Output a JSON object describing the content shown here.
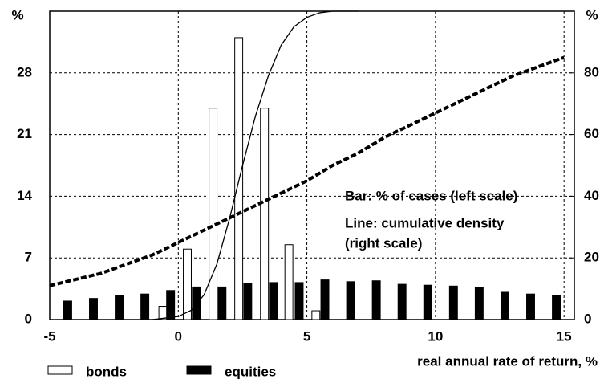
{
  "chart_data": {
    "type": "bar",
    "xlabel": "real annual rate of return, %",
    "ylabel": "%",
    "y2label": "%",
    "annotations": [
      "Bar: % of cases (left scale)",
      "Line: cumulative density",
      "(right scale)"
    ],
    "xlim": [
      -5,
      15.4
    ],
    "xticks": [
      -5,
      0,
      5,
      10,
      15
    ],
    "ylim": [
      0,
      35
    ],
    "yticks": [
      0,
      7,
      14,
      21,
      28
    ],
    "y2lim": [
      0,
      100
    ],
    "y2ticks": [
      0,
      20,
      40,
      60,
      80
    ],
    "grid": true,
    "legend": "bottom",
    "series": [
      {
        "name": "bonds",
        "type": "bar",
        "color": "#ffffff",
        "x": [
          -0.6,
          0.35,
          1.35,
          2.35,
          3.35,
          4.3,
          5.35
        ],
        "values": [
          1.5,
          8,
          24,
          32,
          24,
          8.5,
          1
        ]
      },
      {
        "name": "equities",
        "type": "bar",
        "color": "#000000",
        "x": [
          -4.3,
          -3.3,
          -2.3,
          -1.3,
          -0.3,
          0.7,
          1.7,
          2.7,
          3.7,
          4.7,
          5.7,
          6.7,
          7.7,
          8.7,
          9.7,
          10.7,
          11.7,
          12.7,
          13.7,
          14.7
        ],
        "values": [
          2.1,
          2.4,
          2.7,
          2.9,
          3.3,
          3.7,
          3.7,
          4.1,
          4.2,
          4.2,
          4.5,
          4.3,
          4.4,
          4.0,
          3.9,
          3.8,
          3.6,
          3.1,
          2.9,
          2.7
        ]
      },
      {
        "type": "line",
        "axis": "y2",
        "color": "#000000",
        "dashed": false,
        "x": [
          -1,
          -0.5,
          0,
          0.5,
          1,
          1.5,
          2,
          2.5,
          3,
          3.5,
          4,
          4.5,
          5,
          5.5,
          6,
          7
        ],
        "values": [
          0,
          0.5,
          1,
          3,
          8,
          18,
          33,
          50,
          66,
          79,
          89,
          95,
          98,
          99.5,
          100,
          100
        ]
      },
      {
        "type": "line",
        "axis": "y2",
        "color": "#000000",
        "dashed": true,
        "x": [
          -5,
          -4,
          -3,
          -2,
          -1,
          0,
          1,
          2,
          3,
          4,
          5,
          6,
          7,
          8,
          9,
          10,
          11,
          12,
          13,
          14,
          15
        ],
        "values": [
          11,
          13,
          15,
          18,
          21,
          25,
          29,
          33,
          37,
          41,
          45,
          50,
          54,
          59,
          63,
          67,
          71,
          75,
          79,
          82,
          85
        ]
      }
    ]
  }
}
